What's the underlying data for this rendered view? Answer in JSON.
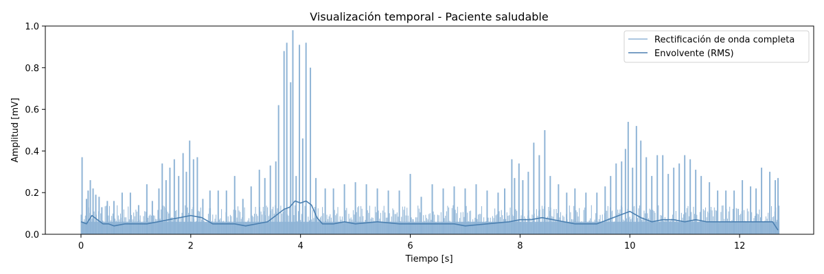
{
  "chart_data": {
    "type": "line",
    "title": "Visualización temporal - Paciente saludable",
    "xlabel": "Tiempo [s]",
    "ylabel": "Amplitud [mV]",
    "xlim": [
      -0.65,
      13.35
    ],
    "ylim": [
      0.0,
      1.0
    ],
    "xticks": [
      0,
      2,
      4,
      6,
      8,
      10,
      12
    ],
    "xtick_labels": [
      "0",
      "2",
      "4",
      "6",
      "8",
      "10",
      "12"
    ],
    "yticks": [
      0.0,
      0.2,
      0.4,
      0.6,
      0.8,
      1.0
    ],
    "ytick_labels": [
      "0.0",
      "0.2",
      "0.4",
      "0.6",
      "0.8",
      "1.0"
    ],
    "grid": false,
    "legend_position": "top-right",
    "series": [
      {
        "name": "Rectificación de onda completa",
        "color": "#8fb4d6",
        "kind": "spikes",
        "x": [
          0.02,
          0.1,
          0.13,
          0.17,
          0.22,
          0.27,
          0.33,
          0.38,
          0.48,
          0.6,
          0.75,
          0.9,
          1.05,
          1.2,
          1.3,
          1.42,
          1.48,
          1.55,
          1.62,
          1.7,
          1.78,
          1.86,
          1.92,
          1.98,
          2.05,
          2.12,
          2.22,
          2.35,
          2.5,
          2.65,
          2.8,
          2.95,
          3.1,
          3.25,
          3.35,
          3.45,
          3.55,
          3.6,
          3.7,
          3.75,
          3.82,
          3.86,
          3.92,
          3.98,
          4.04,
          4.1,
          4.18,
          4.28,
          4.45,
          4.6,
          4.8,
          5.0,
          5.2,
          5.4,
          5.6,
          5.8,
          6.0,
          6.2,
          6.4,
          6.6,
          6.8,
          7.0,
          7.2,
          7.4,
          7.6,
          7.72,
          7.85,
          7.9,
          7.98,
          8.05,
          8.15,
          8.25,
          8.35,
          8.45,
          8.55,
          8.7,
          8.85,
          9.0,
          9.2,
          9.4,
          9.55,
          9.65,
          9.75,
          9.85,
          9.92,
          9.97,
          10.05,
          10.12,
          10.2,
          10.3,
          10.4,
          10.5,
          10.6,
          10.7,
          10.8,
          10.9,
          11.0,
          11.1,
          11.2,
          11.3,
          11.45,
          11.6,
          11.75,
          11.9,
          12.05,
          12.2,
          12.3,
          12.4,
          12.55,
          12.65,
          12.7
        ],
        "y": [
          0.37,
          0.17,
          0.21,
          0.26,
          0.22,
          0.19,
          0.18,
          0.13,
          0.16,
          0.16,
          0.2,
          0.2,
          0.14,
          0.24,
          0.16,
          0.22,
          0.34,
          0.26,
          0.32,
          0.36,
          0.28,
          0.39,
          0.3,
          0.45,
          0.36,
          0.37,
          0.17,
          0.21,
          0.21,
          0.21,
          0.28,
          0.17,
          0.23,
          0.31,
          0.27,
          0.33,
          0.35,
          0.62,
          0.88,
          0.92,
          0.73,
          0.98,
          0.28,
          0.91,
          0.46,
          0.92,
          0.8,
          0.27,
          0.22,
          0.22,
          0.24,
          0.25,
          0.24,
          0.22,
          0.21,
          0.21,
          0.29,
          0.18,
          0.24,
          0.22,
          0.23,
          0.22,
          0.24,
          0.21,
          0.2,
          0.22,
          0.36,
          0.27,
          0.34,
          0.26,
          0.3,
          0.44,
          0.38,
          0.5,
          0.28,
          0.24,
          0.2,
          0.22,
          0.2,
          0.2,
          0.23,
          0.28,
          0.34,
          0.35,
          0.41,
          0.54,
          0.32,
          0.52,
          0.45,
          0.37,
          0.28,
          0.38,
          0.38,
          0.29,
          0.32,
          0.34,
          0.38,
          0.36,
          0.31,
          0.28,
          0.25,
          0.21,
          0.21,
          0.21,
          0.26,
          0.23,
          0.22,
          0.32,
          0.3,
          0.26,
          0.27
        ]
      },
      {
        "name": "Envolvente (RMS)",
        "color": "#4a7fb0",
        "kind": "line",
        "x": [
          0.0,
          0.1,
          0.2,
          0.3,
          0.4,
          0.5,
          0.6,
          0.8,
          1.0,
          1.2,
          1.4,
          1.6,
          1.8,
          2.0,
          2.2,
          2.4,
          2.6,
          2.8,
          3.0,
          3.2,
          3.4,
          3.5,
          3.6,
          3.7,
          3.8,
          3.9,
          4.0,
          4.1,
          4.2,
          4.3,
          4.4,
          4.6,
          4.8,
          5.0,
          5.4,
          5.8,
          6.0,
          6.4,
          6.8,
          7.0,
          7.4,
          7.8,
          8.0,
          8.2,
          8.4,
          8.6,
          9.0,
          9.4,
          9.6,
          9.8,
          10.0,
          10.2,
          10.4,
          10.6,
          10.8,
          11.0,
          11.2,
          11.4,
          11.8,
          12.2,
          12.6,
          12.7
        ],
        "y": [
          0.06,
          0.05,
          0.09,
          0.07,
          0.05,
          0.05,
          0.04,
          0.05,
          0.05,
          0.05,
          0.06,
          0.07,
          0.08,
          0.09,
          0.08,
          0.05,
          0.05,
          0.05,
          0.04,
          0.05,
          0.06,
          0.08,
          0.1,
          0.12,
          0.13,
          0.16,
          0.15,
          0.16,
          0.14,
          0.08,
          0.05,
          0.05,
          0.06,
          0.05,
          0.06,
          0.05,
          0.05,
          0.05,
          0.05,
          0.04,
          0.05,
          0.06,
          0.07,
          0.07,
          0.08,
          0.07,
          0.05,
          0.05,
          0.07,
          0.09,
          0.11,
          0.08,
          0.06,
          0.07,
          0.07,
          0.06,
          0.07,
          0.06,
          0.06,
          0.06,
          0.06,
          0.02
        ]
      }
    ]
  }
}
